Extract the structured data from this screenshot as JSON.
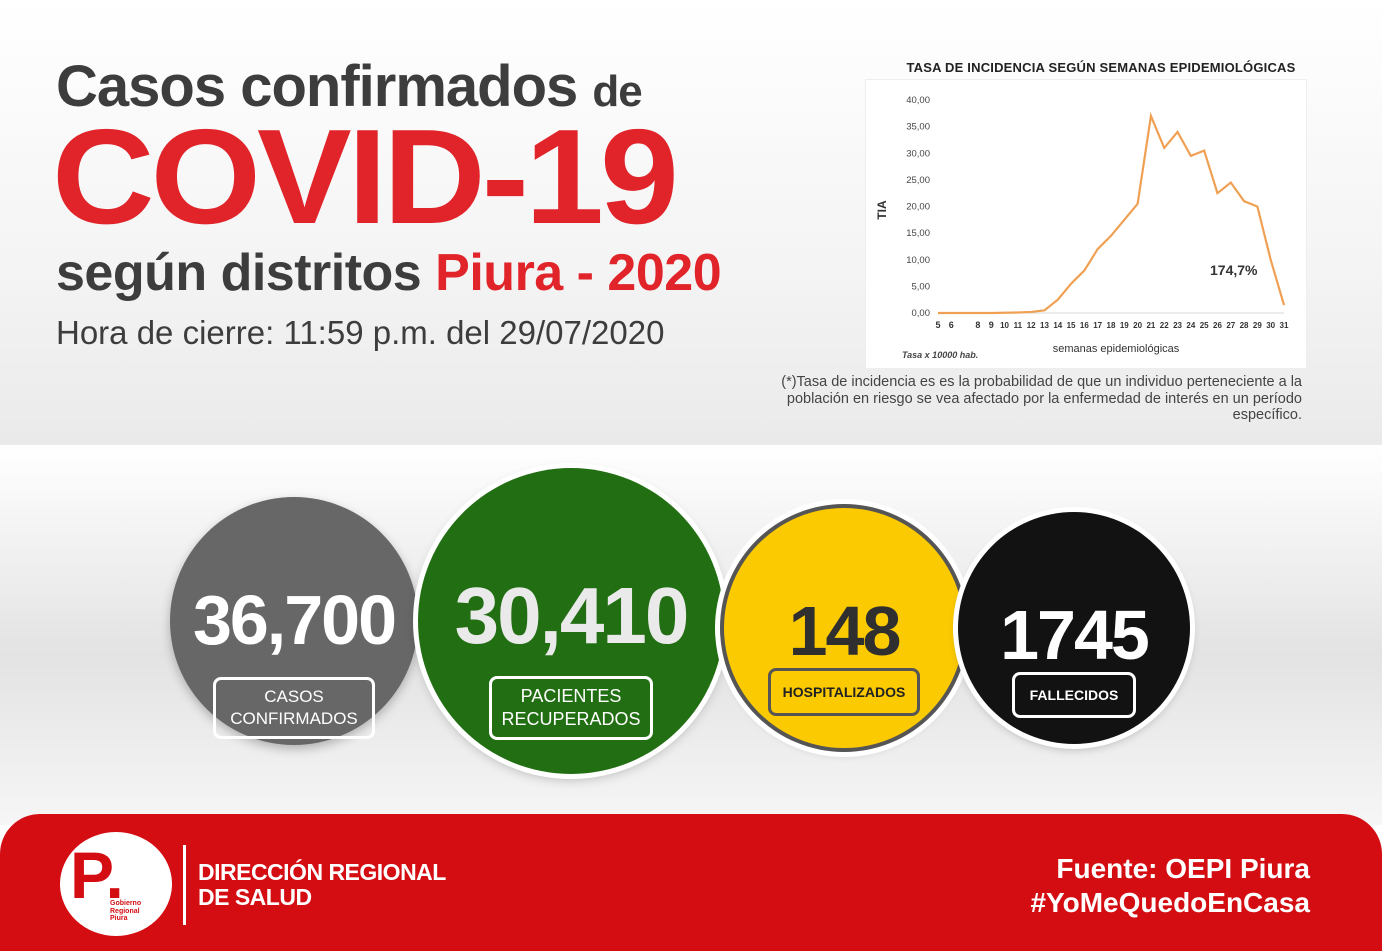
{
  "header": {
    "line1": "Casos confirmados",
    "line1_suffix": "de",
    "covid": "COVID-19",
    "line3": "según distritos",
    "line3_red": "Piura - 2020",
    "closing": "Hora de cierre: 11:59 p.m. del 29/07/2020"
  },
  "chart_data": {
    "type": "line",
    "title": "TASA DE INCIDENCIA SEGÚN SEMANAS EPIDEMIOLÓGICAS",
    "xlabel": "semanas epidemiológicas",
    "ylabel": "TIA",
    "note": "Tasa x 10000 hab.",
    "annotation": "174,7%",
    "ylim": [
      0,
      40
    ],
    "yticks": [
      "0,00",
      "5,00",
      "10,00",
      "15,00",
      "20,00",
      "25,00",
      "30,00",
      "35,00",
      "40,00"
    ],
    "x": [
      5,
      6,
      7,
      8,
      9,
      10,
      11,
      12,
      13,
      14,
      15,
      16,
      17,
      18,
      19,
      20,
      21,
      22,
      23,
      24,
      25,
      26,
      27,
      28,
      29,
      30,
      31
    ],
    "xtick_labels": [
      "5",
      "6",
      "8",
      "9",
      "10",
      "11",
      "12",
      "13",
      "14",
      "15",
      "16",
      "17",
      "18",
      "19",
      "20",
      "21",
      "22",
      "23",
      "24",
      "25",
      "26",
      "27",
      "28",
      "29",
      "30",
      "31"
    ],
    "series": [
      {
        "values": [
          0,
          0,
          0,
          0,
          0,
          0.05,
          0.1,
          0.2,
          0.5,
          2.5,
          5.5,
          8,
          12,
          14.5,
          17.5,
          20.5,
          37,
          31,
          34,
          29.5,
          30.5,
          22.5,
          24.5,
          21,
          20,
          10,
          1.5
        ]
      }
    ],
    "color": "#f0a053",
    "grid": false
  },
  "footnote": "(*)Tasa de incidencia es es la probabilidad de que un individuo perteneciente a la población en riesgo se vea afectado por la enfermedad de interés en un período específico.",
  "stats": [
    {
      "value": "36,700",
      "label1": "CASOS",
      "label2": "CONFIRMADOS"
    },
    {
      "value": "30,410",
      "label1": "PACIENTES",
      "label2": "RECUPERADOS"
    },
    {
      "value": "148",
      "label1": "HOSPITALIZADOS",
      "label2": ""
    },
    {
      "value": "1745",
      "label1": "FALLECIDOS",
      "label2": ""
    }
  ],
  "footer": {
    "logo_letter": "P.",
    "logo_text1": "Gobierno",
    "logo_text2": "Regional",
    "logo_text3": "Piura",
    "org_line1": "DIRECCIÓN REGIONAL",
    "org_line2": "DE SALUD",
    "source": "Fuente: OEPI Piura",
    "hashtag": "#YoMeQuedoEnCasa"
  },
  "colors": {
    "red": "#e0242a",
    "confirmed": "#676767",
    "recovered": "#226f13",
    "hospitalized": "#fcca00",
    "deceased": "#121212",
    "banner": "#d40d13"
  }
}
